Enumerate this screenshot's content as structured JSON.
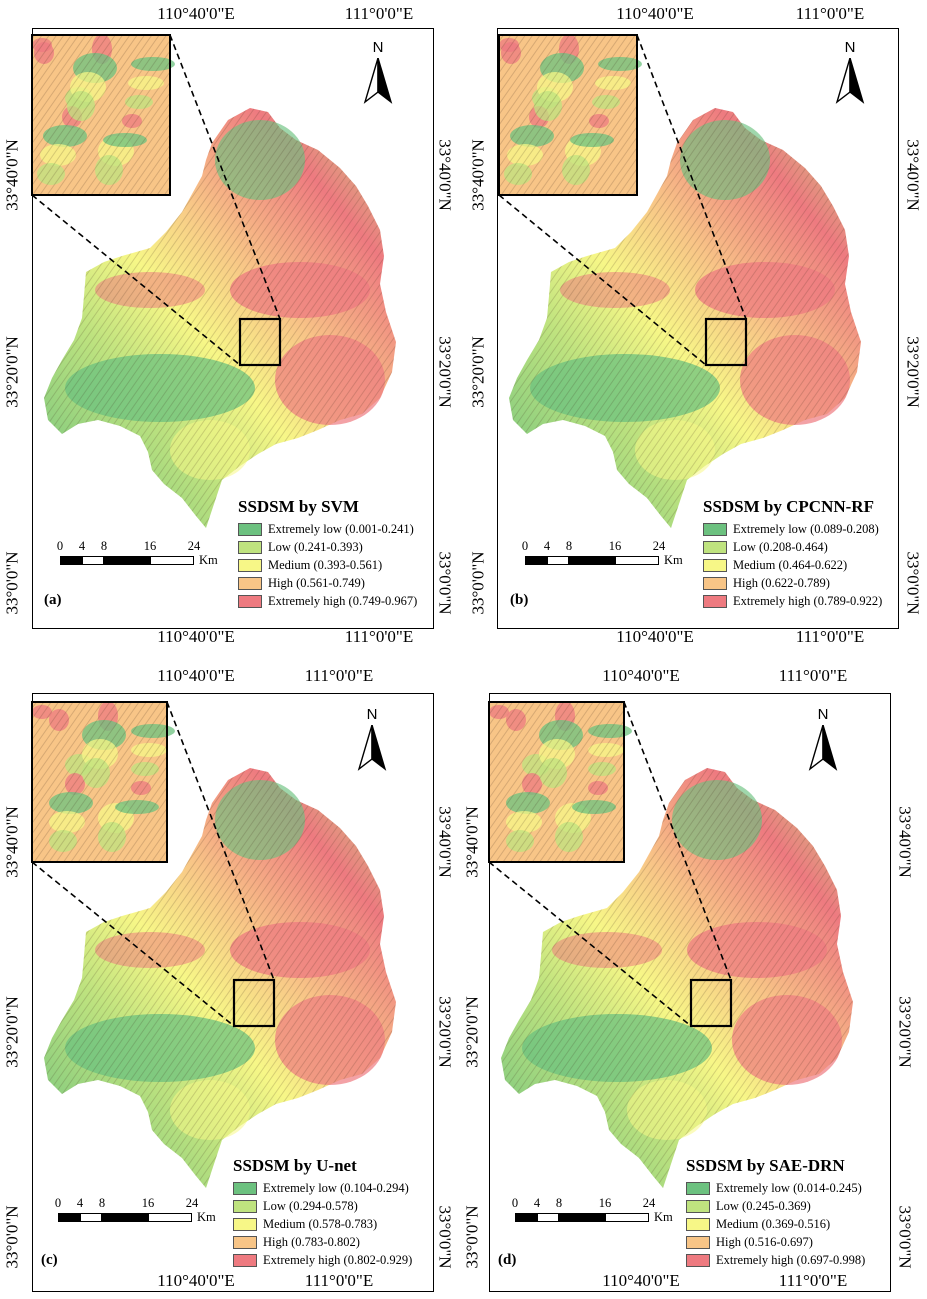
{
  "panels": [
    {
      "id": "a",
      "label": "(a)",
      "title": "SSDSM by SVM",
      "lon_ticks": [
        "110°40'0\"E",
        "111°0'0\"E"
      ],
      "lat_ticks": [
        "33°40'0\"N",
        "33°20'0\"N",
        "33°0'0\"N"
      ],
      "legend": [
        {
          "class": "Extremely low",
          "range": "(0.001-0.241)",
          "color": "#6cc17f"
        },
        {
          "class": "Low",
          "range": "(0.241-0.393)",
          "color": "#bfe37f"
        },
        {
          "class": "Medium",
          "range": "(0.393-0.561)",
          "color": "#f7f787"
        },
        {
          "class": "High",
          "range": "(0.561-0.749)",
          "color": "#f8c587"
        },
        {
          "class": "Extremely high",
          "range": "(0.749-0.967)",
          "color": "#ee7a80"
        }
      ],
      "scale_ticks": [
        "0",
        "4",
        "8",
        "16",
        "24"
      ],
      "scale_unit": "Km",
      "north": "N"
    },
    {
      "id": "b",
      "label": "(b)",
      "title": "SSDSM by CPCNN-RF",
      "lon_ticks": [
        "110°40'0\"E",
        "111°0'0\"E"
      ],
      "lat_ticks": [
        "33°40'0\"N",
        "33°20'0\"N",
        "33°0'0\"N"
      ],
      "legend": [
        {
          "class": "Extremely low",
          "range": "(0.089-0.208)",
          "color": "#6cc17f"
        },
        {
          "class": "Low",
          "range": "(0.208-0.464)",
          "color": "#bfe37f"
        },
        {
          "class": "Medium",
          "range": "(0.464-0.622)",
          "color": "#f7f787"
        },
        {
          "class": "High",
          "range": "(0.622-0.789)",
          "color": "#f8c587"
        },
        {
          "class": "Extremely high",
          "range": "(0.789-0.922)",
          "color": "#ee7a80"
        }
      ],
      "scale_ticks": [
        "0",
        "4",
        "8",
        "16",
        "24"
      ],
      "scale_unit": "Km",
      "north": "N"
    },
    {
      "id": "c",
      "label": "(c)",
      "title": "SSDSM by U-net",
      "lon_ticks": [
        "110°40'0\"E",
        "111°0'0\"E"
      ],
      "lat_ticks": [
        "33°40'0\"N",
        "33°20'0\"N",
        "33°0'0\"N"
      ],
      "legend": [
        {
          "class": "Extremely low",
          "range": "(0.104-0.294)",
          "color": "#6cc17f"
        },
        {
          "class": "Low",
          "range": "(0.294-0.578)",
          "color": "#bfe37f"
        },
        {
          "class": "Medium",
          "range": "(0.578-0.783)",
          "color": "#f7f787"
        },
        {
          "class": "High",
          "range": "(0.783-0.802)",
          "color": "#f8c587"
        },
        {
          "class": "Extremely high",
          "range": "(0.802-0.929)",
          "color": "#ee7a80"
        }
      ],
      "scale_ticks": [
        "0",
        "4",
        "8",
        "16",
        "24"
      ],
      "scale_unit": "Km",
      "north": "N"
    },
    {
      "id": "d",
      "label": "(d)",
      "title": "SSDSM by SAE-DRN",
      "lon_ticks": [
        "110°40'0\"E",
        "111°0'0\"E"
      ],
      "lat_ticks": [
        "33°40'0\"N",
        "33°20'0\"N",
        "33°0'0\"N"
      ],
      "legend": [
        {
          "class": "Extremely low",
          "range": "(0.014-0.245)",
          "color": "#6cc17f"
        },
        {
          "class": "Low",
          "range": "(0.245-0.369)",
          "color": "#bfe37f"
        },
        {
          "class": "Medium",
          "range": "(0.369-0.516)",
          "color": "#f7f787"
        },
        {
          "class": "High",
          "range": "(0.516-0.697)",
          "color": "#f8c587"
        },
        {
          "class": "Extremely high",
          "range": "(0.697-0.998)",
          "color": "#ee7a80"
        }
      ],
      "scale_ticks": [
        "0",
        "4",
        "8",
        "16",
        "24"
      ],
      "scale_unit": "Km",
      "north": "N"
    }
  ]
}
